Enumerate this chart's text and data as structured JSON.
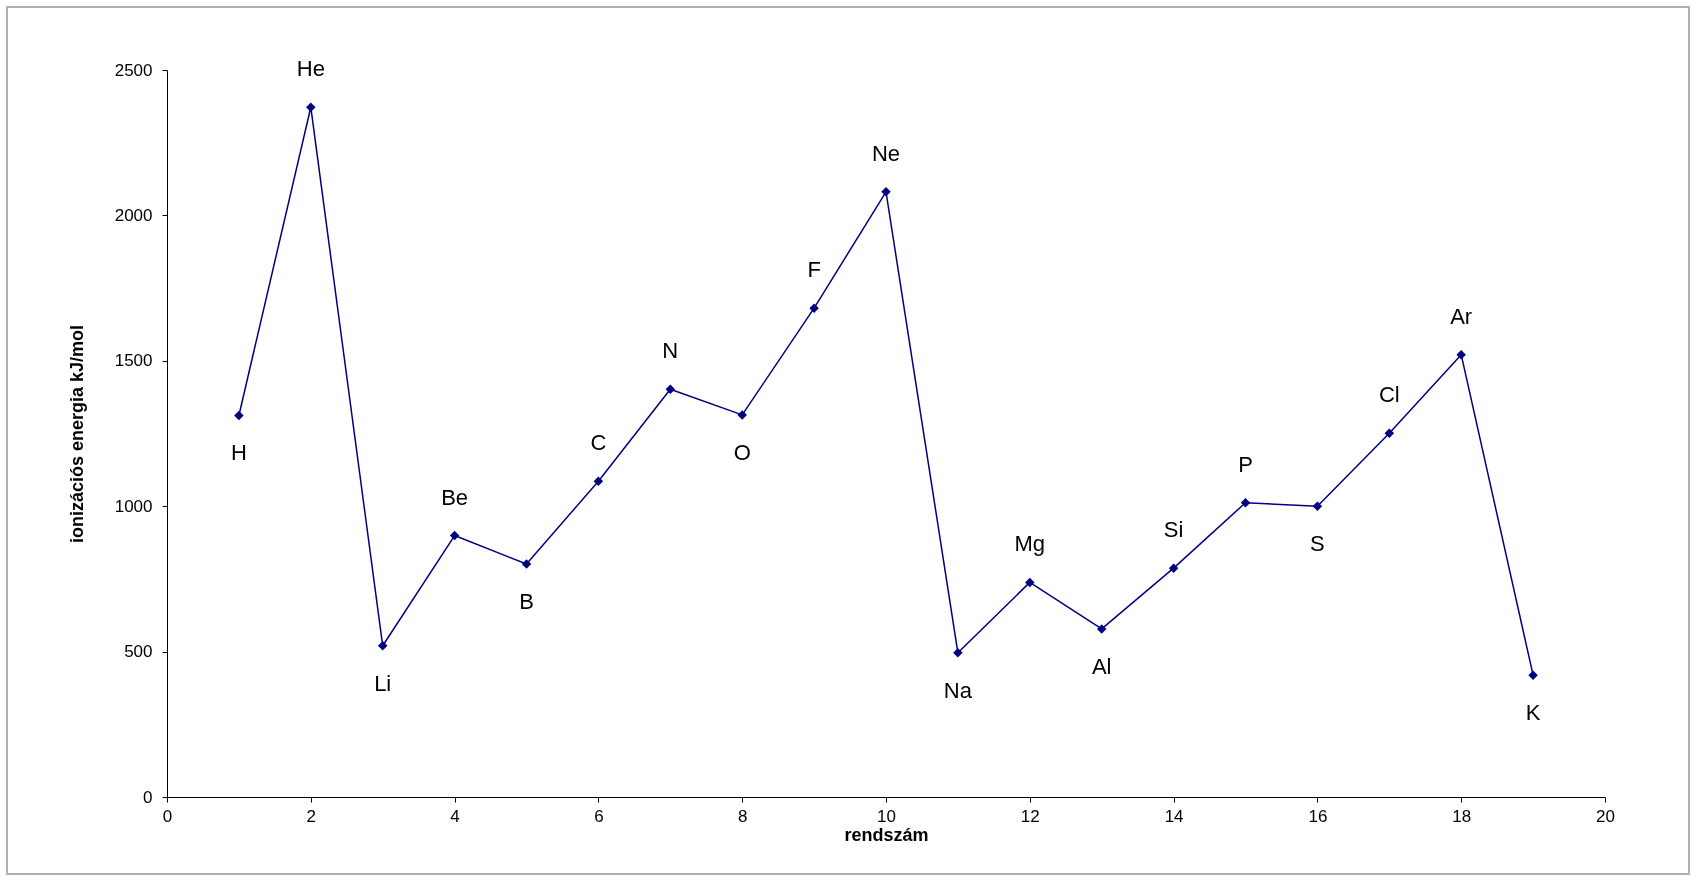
{
  "chart_data": {
    "type": "line",
    "xlabel": "rendszám",
    "ylabel": "ionizációs energia kJ/mol",
    "x": [
      1,
      2,
      3,
      4,
      5,
      6,
      7,
      8,
      9,
      10,
      11,
      12,
      13,
      14,
      15,
      16,
      17,
      18,
      19
    ],
    "series": [
      {
        "color": "#000080",
        "values": [
          1312,
          2372,
          520,
          899,
          801,
          1086,
          1402,
          1314,
          1681,
          2081,
          496,
          738,
          578,
          787,
          1012,
          1000,
          1251,
          1521,
          419
        ]
      }
    ],
    "xlim": [
      0,
      20
    ],
    "xticks": [
      0,
      2,
      4,
      6,
      8,
      10,
      12,
      14,
      16,
      18,
      20
    ],
    "ylim": [
      0,
      2500
    ],
    "yticks": [
      0,
      500,
      1000,
      1500,
      2000,
      2500
    ],
    "grid": false,
    "legend": false,
    "marker": "diamond",
    "line_style": "solid",
    "annotations": [
      {
        "text": "H",
        "x": 1,
        "y": 1312
      },
      {
        "text": "He",
        "x": 2,
        "y": 2372
      },
      {
        "text": "Li",
        "x": 3,
        "y": 520
      },
      {
        "text": "Be",
        "x": 4,
        "y": 899
      },
      {
        "text": "B",
        "x": 5,
        "y": 801
      },
      {
        "text": "C",
        "x": 6,
        "y": 1086
      },
      {
        "text": "N",
        "x": 7,
        "y": 1402
      },
      {
        "text": "O",
        "x": 8,
        "y": 1314
      },
      {
        "text": "F",
        "x": 9,
        "y": 1681
      },
      {
        "text": "Ne",
        "x": 10,
        "y": 2081
      },
      {
        "text": "Na",
        "x": 11,
        "y": 496
      },
      {
        "text": "Mg",
        "x": 12,
        "y": 738
      },
      {
        "text": "Al",
        "x": 13,
        "y": 578
      },
      {
        "text": "Si",
        "x": 14,
        "y": 787
      },
      {
        "text": "P",
        "x": 15,
        "y": 1012
      },
      {
        "text": "S",
        "x": 16,
        "y": 1000
      },
      {
        "text": "Cl",
        "x": 17,
        "y": 1251
      },
      {
        "text": "Ar",
        "x": 18,
        "y": 1521
      },
      {
        "text": "K",
        "x": 19,
        "y": 419
      }
    ]
  }
}
